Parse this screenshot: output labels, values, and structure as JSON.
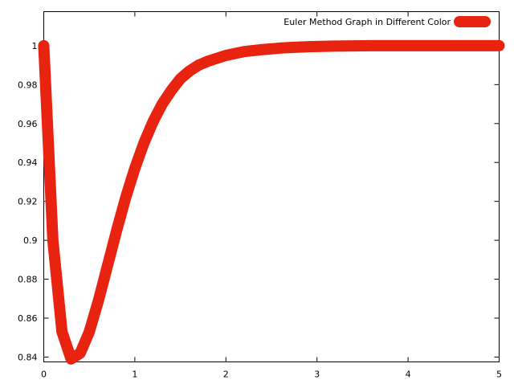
{
  "chart_data": {
    "type": "line",
    "title": "",
    "xlabel": "",
    "ylabel": "",
    "xlim": [
      0,
      5
    ],
    "ylim": [
      0.8375,
      1.0175
    ],
    "x_ticks": [
      0,
      1,
      2,
      3,
      4,
      5
    ],
    "y_ticks": [
      0.84,
      0.86,
      0.88,
      0.9,
      0.92,
      0.94,
      0.96,
      0.98,
      1
    ],
    "x_tick_labels": [
      "0",
      "1",
      "2",
      "3",
      "4",
      "5"
    ],
    "y_tick_labels": [
      "0.84",
      "0.86",
      "0.88",
      "0.9",
      "0.92",
      "0.94",
      "0.96",
      "0.98",
      "1"
    ],
    "grid": false,
    "legend": {
      "position": "top-right"
    },
    "series": [
      {
        "name": "Euler Method Graph in Different Color",
        "color": "#e8230f",
        "x": [
          0,
          0.1,
          0.2,
          0.3,
          0.4,
          0.5,
          0.6,
          0.7,
          0.8,
          0.9,
          1.0,
          1.1,
          1.2,
          1.3,
          1.4,
          1.5,
          1.6,
          1.7,
          1.8,
          1.9,
          2.0,
          2.2,
          2.4,
          2.6,
          2.8,
          3.0,
          3.2,
          3.4,
          3.6,
          3.8,
          4.0,
          4.5,
          5.0
        ],
        "y": [
          1.0,
          0.9,
          0.853,
          0.839,
          0.842,
          0.853,
          0.869,
          0.887,
          0.905,
          0.922,
          0.937,
          0.95,
          0.961,
          0.97,
          0.977,
          0.983,
          0.987,
          0.99,
          0.992,
          0.9935,
          0.995,
          0.997,
          0.998,
          0.9988,
          0.9993,
          0.9996,
          0.9998,
          0.9999,
          1.0,
          1.0,
          1.0,
          1.0,
          1.0
        ]
      }
    ]
  }
}
